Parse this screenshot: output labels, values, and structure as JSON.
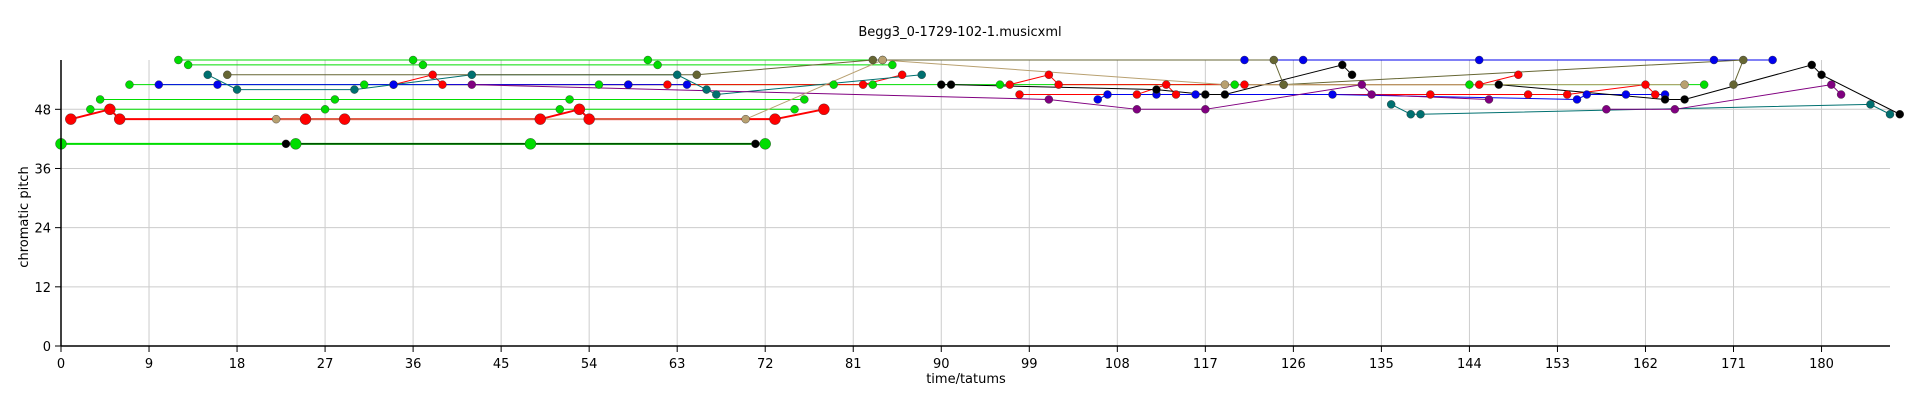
{
  "chart_data": {
    "type": "scatter",
    "title": "Begg3_0-1729-102-1.musicxml",
    "xlabel": "time/tatums",
    "ylabel": "chromatic pitch",
    "xlim": [
      0,
      187
    ],
    "ylim": [
      0,
      58
    ],
    "x_ticks": [
      "0",
      "9",
      "18",
      "27",
      "36",
      "45",
      "54",
      "63",
      "72",
      "81",
      "90",
      "99",
      "108",
      "117",
      "126",
      "135",
      "144",
      "153",
      "162",
      "171",
      "180"
    ],
    "y_ticks": [
      "0",
      "12",
      "24",
      "36",
      "48"
    ],
    "grid": true,
    "colors": {
      "green": "#00dd00",
      "red": "#ff0000",
      "blue": "#0000ee",
      "teal": "#007070",
      "black": "#000000",
      "purple": "#800080",
      "olive": "#666633",
      "tan": "#b8a070",
      "axis": "#000000",
      "grid": "#cccccc"
    },
    "series": [
      {
        "color": "green",
        "w": 2,
        "points": [
          [
            0,
            41
          ],
          [
            24,
            41
          ],
          [
            48,
            41
          ],
          [
            72,
            41
          ]
        ]
      },
      {
        "color": "green",
        "w": 1,
        "points": [
          [
            3,
            48
          ],
          [
            27,
            48
          ],
          [
            51,
            48
          ],
          [
            75,
            48
          ]
        ]
      },
      {
        "color": "green",
        "w": 1,
        "points": [
          [
            4,
            50
          ],
          [
            28,
            50
          ],
          [
            52,
            50
          ],
          [
            76,
            50
          ]
        ]
      },
      {
        "color": "green",
        "w": 1,
        "points": [
          [
            7,
            53
          ],
          [
            31,
            53
          ],
          [
            55,
            53
          ],
          [
            79,
            53
          ],
          [
            83,
            53
          ],
          [
            96,
            53
          ],
          [
            120,
            53
          ],
          [
            144,
            53
          ],
          [
            168,
            53
          ]
        ]
      },
      {
        "color": "green",
        "w": 1,
        "points": [
          [
            12,
            58
          ],
          [
            36,
            58
          ],
          [
            60,
            58
          ],
          [
            84,
            58
          ]
        ]
      },
      {
        "color": "green",
        "w": 1,
        "points": [
          [
            13,
            57
          ],
          [
            37,
            57
          ],
          [
            61,
            57
          ],
          [
            85,
            57
          ]
        ]
      },
      {
        "color": "red",
        "w": 2,
        "points": [
          [
            1,
            46
          ],
          [
            5,
            48
          ],
          [
            6,
            46
          ],
          [
            25,
            46
          ],
          [
            29,
            46
          ],
          [
            49,
            46
          ],
          [
            53,
            48
          ],
          [
            54,
            46
          ],
          [
            73,
            46
          ],
          [
            78,
            48
          ]
        ]
      },
      {
        "color": "red",
        "w": 1,
        "points": [
          [
            34,
            53
          ],
          [
            38,
            55
          ],
          [
            39,
            53
          ],
          [
            58,
            53
          ],
          [
            62,
            53
          ],
          [
            82,
            53
          ],
          [
            86,
            55
          ]
        ]
      },
      {
        "color": "red",
        "w": 1,
        "points": [
          [
            97,
            53
          ],
          [
            101,
            55
          ],
          [
            102,
            53
          ],
          [
            121,
            53
          ],
          [
            125,
            53
          ],
          [
            145,
            53
          ],
          [
            149,
            55
          ]
        ]
      },
      {
        "color": "red",
        "w": 1,
        "points": [
          [
            98,
            51
          ],
          [
            110,
            51
          ],
          [
            113,
            53
          ],
          [
            114,
            51
          ],
          [
            140,
            51
          ],
          [
            150,
            51
          ],
          [
            154,
            51
          ],
          [
            162,
            53
          ],
          [
            163,
            51
          ]
        ]
      },
      {
        "color": "blue",
        "w": 1,
        "points": [
          [
            10,
            53
          ],
          [
            16,
            53
          ],
          [
            34,
            53
          ],
          [
            58,
            53
          ],
          [
            64,
            53
          ]
        ]
      },
      {
        "color": "blue",
        "w": 1,
        "points": [
          [
            106,
            50
          ],
          [
            107,
            51
          ],
          [
            112,
            51
          ],
          [
            116,
            51
          ],
          [
            130,
            51
          ],
          [
            155,
            50
          ],
          [
            156,
            51
          ],
          [
            160,
            51
          ],
          [
            164,
            51
          ]
        ]
      },
      {
        "color": "blue",
        "w": 1,
        "points": [
          [
            121,
            58
          ],
          [
            127,
            58
          ],
          [
            145,
            58
          ],
          [
            169,
            58
          ],
          [
            175,
            58
          ]
        ]
      },
      {
        "color": "teal",
        "w": 1,
        "points": [
          [
            15,
            55
          ],
          [
            18,
            52
          ],
          [
            30,
            52
          ],
          [
            42,
            55
          ],
          [
            63,
            55
          ],
          [
            66,
            52
          ],
          [
            67,
            51
          ],
          [
            88,
            55
          ]
        ]
      },
      {
        "color": "teal",
        "w": 1,
        "points": [
          [
            136,
            49
          ],
          [
            138,
            47
          ],
          [
            139,
            47
          ],
          [
            185,
            49
          ],
          [
            187,
            47
          ]
        ]
      },
      {
        "color": "black",
        "w": 1,
        "points": [
          [
            23,
            41
          ],
          [
            71,
            41
          ]
        ]
      },
      {
        "color": "black",
        "w": 1,
        "points": [
          [
            90,
            53
          ],
          [
            91,
            53
          ],
          [
            112,
            52
          ],
          [
            117,
            51
          ],
          [
            119,
            51
          ],
          [
            131,
            57
          ],
          [
            132,
            55
          ]
        ]
      },
      {
        "color": "black",
        "w": 1,
        "points": [
          [
            147,
            53
          ],
          [
            164,
            50
          ],
          [
            166,
            50
          ],
          [
            179,
            57
          ],
          [
            180,
            55
          ],
          [
            188,
            47
          ]
        ]
      },
      {
        "color": "purple",
        "w": 1,
        "points": [
          [
            42,
            53
          ],
          [
            101,
            50
          ],
          [
            110,
            48
          ],
          [
            117,
            48
          ],
          [
            133,
            53
          ],
          [
            134,
            51
          ],
          [
            146,
            50
          ]
        ]
      },
      {
        "color": "purple",
        "w": 1,
        "points": [
          [
            158,
            48
          ],
          [
            165,
            48
          ],
          [
            181,
            53
          ],
          [
            182,
            51
          ]
        ]
      },
      {
        "color": "olive",
        "w": 1,
        "points": [
          [
            17,
            55
          ],
          [
            65,
            55
          ],
          [
            83,
            58
          ],
          [
            124,
            58
          ],
          [
            125,
            53
          ],
          [
            172,
            58
          ],
          [
            171,
            53
          ]
        ]
      },
      {
        "color": "tan",
        "w": 1,
        "points": [
          [
            22,
            46
          ],
          [
            70,
            46
          ],
          [
            84,
            58
          ],
          [
            119,
            53
          ],
          [
            166,
            53
          ]
        ]
      }
    ]
  }
}
